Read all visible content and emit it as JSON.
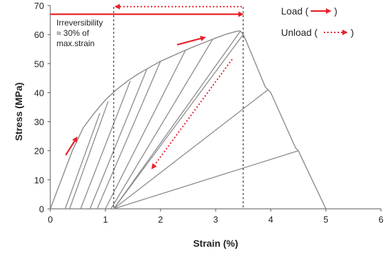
{
  "chart_data": {
    "type": "line",
    "xlabel": "Strain (%)",
    "ylabel": "Stress (MPa)",
    "xlim": [
      0,
      6
    ],
    "ylim": [
      0,
      70
    ],
    "x_ticks": [
      "0",
      "1",
      "2",
      "3",
      "4",
      "5",
      "6"
    ],
    "y_ticks": [
      "0",
      "10",
      "20",
      "30",
      "40",
      "50",
      "60",
      "70"
    ],
    "grid": false,
    "legend": {
      "position": "top-right",
      "entries": [
        {
          "label": "Load (",
          "close": ")",
          "style": "solid-arrow"
        },
        {
          "label": "Unload (",
          "close": ")",
          "style": "dotted-arrow"
        }
      ]
    },
    "annotation": {
      "lines": [
        "Irreversibility",
        "≈ 30% of",
        "max.strain"
      ]
    },
    "colors": {
      "curve": "#8a8a8a",
      "annotation": "#e8212a",
      "axis": "#555555",
      "text": "#222222"
    },
    "reference_lines": {
      "max_strain": 3.5,
      "residual_strain": 1.15,
      "max_stress_level": 67
    },
    "envelope": [
      [
        0,
        0
      ],
      [
        0.2,
        10
      ],
      [
        0.4,
        20
      ],
      [
        0.6,
        28
      ],
      [
        0.8,
        33
      ],
      [
        1.0,
        37.5
      ],
      [
        1.2,
        41
      ],
      [
        1.4,
        44
      ],
      [
        1.6,
        46.5
      ],
      [
        1.8,
        48.7
      ],
      [
        2.0,
        50.8
      ],
      [
        2.2,
        52.5
      ],
      [
        2.4,
        54.2
      ],
      [
        2.6,
        55.8
      ],
      [
        2.8,
        57.3
      ],
      [
        3.0,
        58.8
      ],
      [
        3.2,
        60.2
      ],
      [
        3.4,
        61.2
      ],
      [
        3.45,
        61.2
      ],
      [
        3.5,
        60
      ],
      [
        3.55,
        58
      ],
      [
        3.9,
        42
      ],
      [
        4.0,
        40
      ],
      [
        4.45,
        21
      ],
      [
        4.5,
        20
      ],
      [
        5.0,
        0
      ]
    ],
    "unload_lines": [
      {
        "from": [
          0.9,
          33
        ],
        "to": [
          0.27,
          0
        ]
      },
      {
        "from": [
          1.05,
          37
        ],
        "to": [
          0.35,
          0
        ]
      },
      {
        "from": [
          1.45,
          44
        ],
        "to": [
          0.55,
          0
        ]
      },
      {
        "from": [
          1.75,
          48
        ],
        "to": [
          0.72,
          0
        ]
      },
      {
        "from": [
          2.0,
          50.8
        ],
        "to": [
          0.85,
          0
        ]
      },
      {
        "from": [
          2.45,
          54.5
        ],
        "to": [
          1.0,
          0
        ]
      },
      {
        "from": [
          2.95,
          58.5
        ],
        "to": [
          1.1,
          0
        ]
      },
      {
        "from": [
          3.45,
          61.2
        ],
        "to": [
          1.15,
          0
        ]
      },
      {
        "from": [
          3.5,
          60
        ],
        "to": [
          1.15,
          0
        ]
      },
      {
        "from": [
          3.95,
          41
        ],
        "to": [
          1.15,
          0
        ]
      },
      {
        "from": [
          4.5,
          20
        ],
        "to": [
          1.15,
          0
        ]
      }
    ]
  }
}
